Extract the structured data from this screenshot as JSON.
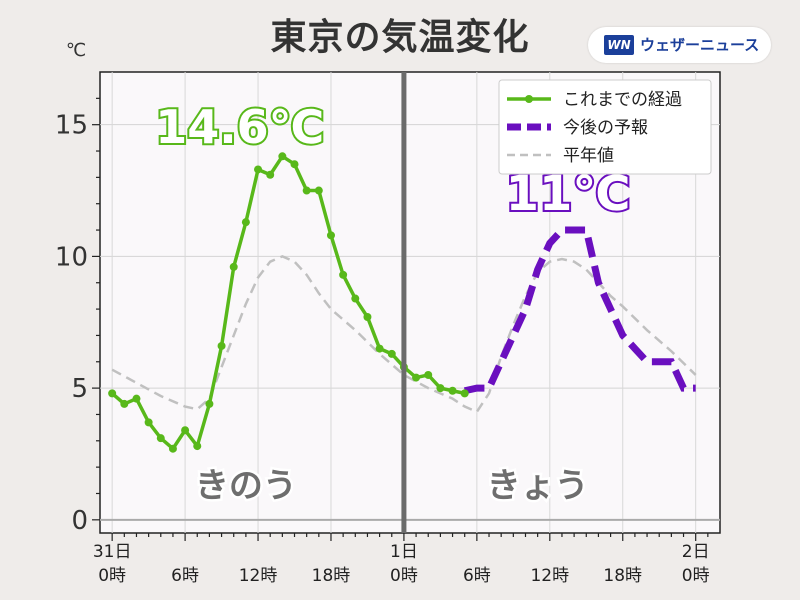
{
  "header": {
    "title": "東京の気温変化",
    "logo_mark": "WN",
    "logo_text": "ウェザーニュース"
  },
  "colors": {
    "observed": "#58b81a",
    "forecast": "#6a0fbf",
    "normal": "#c0c0c0",
    "divider": "#6b6b6b",
    "background": "#efecea",
    "plot_background": "#faf8fa"
  },
  "chart_data": {
    "type": "line",
    "title": "東京の気温変化",
    "y_unit": "℃",
    "ylim": [
      -0.5,
      17
    ],
    "xlim": [
      -1,
      50
    ],
    "grid": true,
    "legend_position": "top-right",
    "y_ticks": [
      0,
      5,
      10,
      15
    ],
    "x_ticks": [
      {
        "x": 0,
        "top": "31日",
        "bottom": "0時"
      },
      {
        "x": 6,
        "top": "",
        "bottom": "6時"
      },
      {
        "x": 12,
        "top": "",
        "bottom": "12時"
      },
      {
        "x": 18,
        "top": "",
        "bottom": "18時"
      },
      {
        "x": 24,
        "top": "1日",
        "bottom": "0時"
      },
      {
        "x": 30,
        "top": "",
        "bottom": "6時"
      },
      {
        "x": 36,
        "top": "",
        "bottom": "12時"
      },
      {
        "x": 42,
        "top": "",
        "bottom": "18時"
      },
      {
        "x": 48,
        "top": "2日",
        "bottom": "0時"
      }
    ],
    "divider_x": 24,
    "series": [
      {
        "name": "これまでの経過",
        "style": "solid-markers",
        "x": [
          0,
          1,
          2,
          3,
          4,
          5,
          6,
          7,
          8,
          9,
          10,
          11,
          12,
          13,
          14,
          15,
          16,
          17,
          18,
          19,
          20,
          21,
          22,
          23,
          24,
          25,
          26,
          27,
          28,
          29,
          30
        ],
        "y": [
          4.8,
          4.4,
          4.6,
          3.7,
          3.1,
          2.7,
          3.4,
          2.8,
          4.4,
          6.6,
          9.6,
          11.3,
          13.3,
          13.1,
          13.8,
          13.5,
          12.5,
          12.5,
          10.8,
          9.3,
          8.4,
          7.7,
          6.5,
          6.3,
          5.8,
          5.4,
          5.5,
          5.0,
          4.9,
          4.8,
          null
        ],
        "max_label": "14.6℃"
      },
      {
        "name": "今後の予報",
        "style": "dashed-thick",
        "x": [
          29,
          30,
          31,
          32,
          33,
          34,
          35,
          36,
          37,
          38,
          39,
          40,
          41,
          42,
          43,
          44,
          45,
          46,
          47,
          48
        ],
        "y": [
          4.9,
          5.0,
          5.0,
          6.0,
          7.0,
          8.0,
          9.5,
          10.5,
          11.0,
          11.0,
          11.0,
          9.0,
          8.0,
          7.0,
          6.5,
          6.0,
          6.0,
          6.0,
          5.0,
          5.0
        ],
        "max_label": "11℃"
      },
      {
        "name": "平年値",
        "style": "dashed-thin",
        "x": [
          0,
          2,
          4,
          6,
          7,
          8,
          9,
          10,
          11,
          12,
          13,
          14,
          15,
          16,
          17,
          18,
          20,
          22,
          24,
          26,
          28,
          29,
          30,
          31,
          32,
          33,
          34,
          35,
          36,
          37,
          38,
          39,
          40,
          41,
          42,
          44,
          46,
          48
        ],
        "y": [
          5.7,
          5.2,
          4.7,
          4.3,
          4.2,
          4.6,
          5.8,
          7.0,
          8.2,
          9.2,
          9.8,
          10.0,
          9.8,
          9.3,
          8.6,
          8.0,
          7.2,
          6.3,
          5.5,
          5.0,
          4.6,
          4.3,
          4.1,
          4.8,
          6.2,
          7.4,
          8.5,
          9.4,
          9.8,
          9.9,
          9.8,
          9.5,
          9.0,
          8.5,
          8.1,
          7.2,
          6.4,
          5.5
        ]
      }
    ],
    "annotations": [
      {
        "text": "きのう",
        "x": 11,
        "y": 0.8
      },
      {
        "text": "きょう",
        "x": 35,
        "y": 0.8
      }
    ]
  }
}
